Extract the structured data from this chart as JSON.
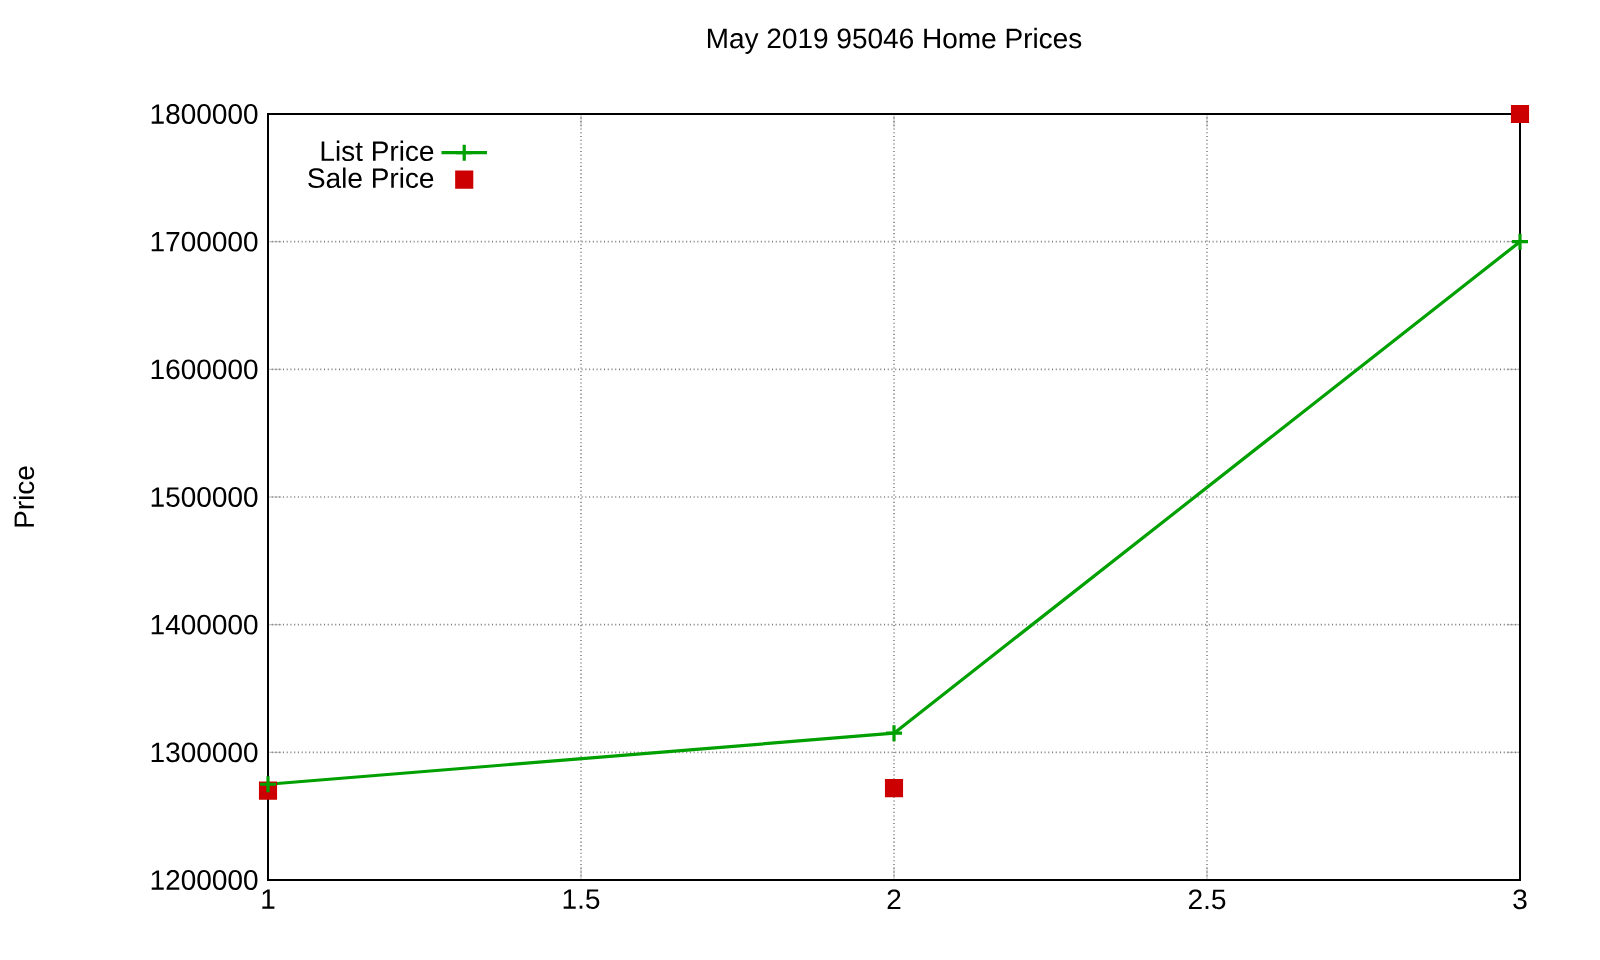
{
  "chart_data": {
    "type": "line",
    "title": "May 2019 95046 Home Prices",
    "ylabel": "Price",
    "x": [
      1,
      2,
      3
    ],
    "series": [
      {
        "name": "List Price",
        "color": "#00a000",
        "marker": "cross",
        "values": [
          1275000,
          1315000,
          1700000
        ]
      },
      {
        "name": "Sale Price",
        "type": "scatter",
        "color": "#cc0000",
        "marker": "square",
        "values": [
          1270000,
          1272000,
          1800000
        ]
      }
    ],
    "xlim": [
      1,
      3
    ],
    "xticks": [
      1,
      1.5,
      2,
      2.5,
      3
    ],
    "ylim": [
      1200000,
      1800000
    ],
    "yticks": [
      1200000,
      1300000,
      1400000,
      1500000,
      1600000,
      1700000,
      1800000
    ],
    "grid": true,
    "legend": "top left"
  }
}
